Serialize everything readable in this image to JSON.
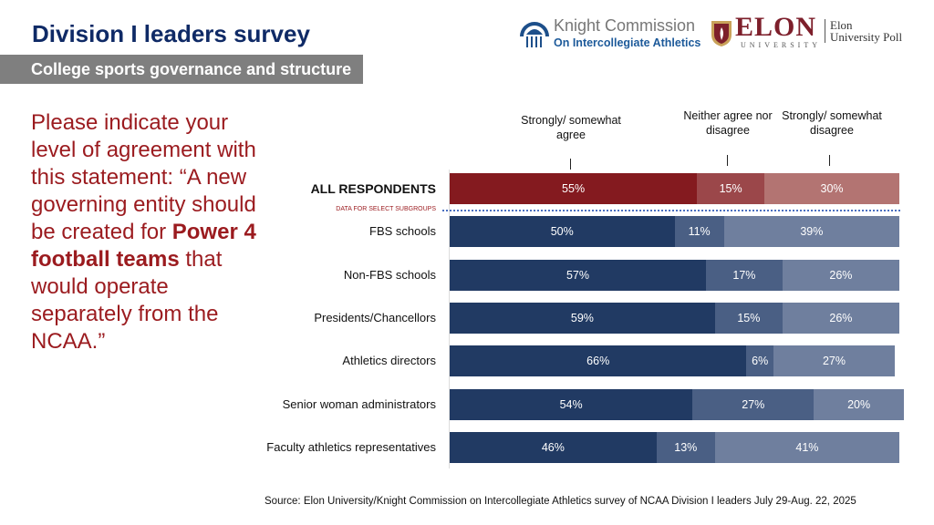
{
  "header": {
    "title": "Division I leaders survey",
    "subtitle": "College sports governance and structure"
  },
  "logos": {
    "knight_line1": "Knight Commission",
    "knight_line2": "On Intercollegiate Athletics",
    "elon": "ELON",
    "elon_sub": "UNIVERSITY",
    "poll": "Elon University Poll"
  },
  "question": {
    "pre": "Please indicate your level of agreement with this statement: “A new governing entity should be created for ",
    "bold": "Power 4 football teams",
    "post": " that would operate separately from the NCAA.”"
  },
  "source": "Source: Elon University/Knight Commission on Intercollegiate Athletics survey of NCAA Division I leaders July 29-Aug. 22, 2025",
  "chart_data": {
    "type": "bar",
    "orientation": "horizontal",
    "stacked": true,
    "series": [
      {
        "name": "Strongly/ somewhat agree"
      },
      {
        "name": "Neither agree nor disagree"
      },
      {
        "name": "Strongly/ somewhat disagree"
      }
    ],
    "subgroup_note": "DATA FOR SELECT SUBGROUPS",
    "categories": [
      "ALL RESPONDENTS",
      "FBS schools",
      "Non-FBS schools",
      "Presidents/Chancellors",
      "Athletics directors",
      "Senior woman administrators",
      "Faculty athletics representatives"
    ],
    "values": [
      [
        55,
        15,
        30
      ],
      [
        50,
        11,
        39
      ],
      [
        57,
        17,
        26
      ],
      [
        59,
        15,
        26
      ],
      [
        66,
        6,
        27
      ],
      [
        54,
        27,
        20
      ],
      [
        46,
        13,
        41
      ]
    ],
    "colors": {
      "all": [
        "#841a1f",
        "#9b474a",
        "#b37472"
      ],
      "subgroups": [
        "#213a63",
        "#4a5f84",
        "#6f7f9e"
      ]
    },
    "xlim": [
      0,
      100
    ]
  }
}
